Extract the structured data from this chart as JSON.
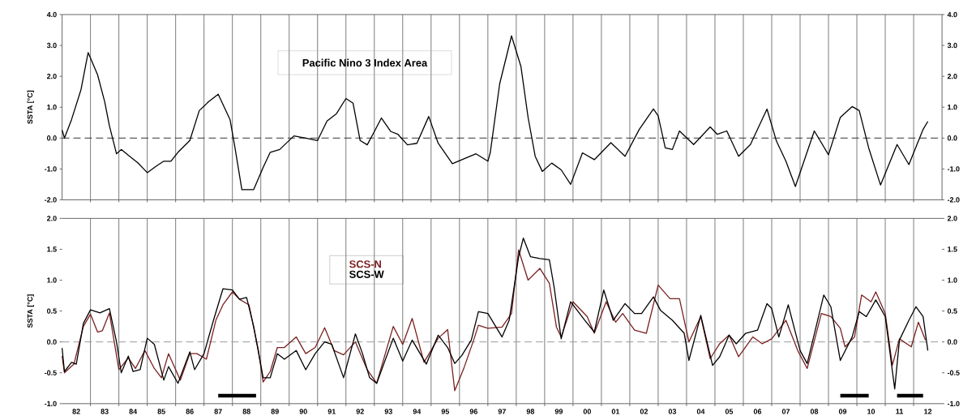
{
  "chart_data": [
    {
      "type": "line",
      "title": "Pacific Nino 3 Index Area",
      "ylabel": "SSTA [°C]",
      "xlim": [
        "1982",
        "2013"
      ],
      "xticks": [
        {
          "value": "1983",
          "label": null
        },
        {
          "value": "1984",
          "label": null
        },
        {
          "value": "1985",
          "label": null
        },
        {
          "value": "1986",
          "label": null
        },
        {
          "value": "1987",
          "label": null
        },
        {
          "value": "1988",
          "label": null
        },
        {
          "value": "1989",
          "label": null
        },
        {
          "value": "1990",
          "label": null
        },
        {
          "value": "1991",
          "label": null
        },
        {
          "value": "1992",
          "label": null
        },
        {
          "value": "1993",
          "label": null
        },
        {
          "value": "1994",
          "label": null
        },
        {
          "value": "1995",
          "label": null
        },
        {
          "value": "1996",
          "label": null
        },
        {
          "value": "1997",
          "label": null
        },
        {
          "value": "1998",
          "label": null
        },
        {
          "value": "1999",
          "label": null
        },
        {
          "value": "2000",
          "label": null
        },
        {
          "value": "2001",
          "label": null
        },
        {
          "value": "2002",
          "label": null
        },
        {
          "value": "2003",
          "label": null
        },
        {
          "value": "2004",
          "label": null
        },
        {
          "value": "2005",
          "label": null
        },
        {
          "value": "2006",
          "label": null
        },
        {
          "value": "2007",
          "label": null
        },
        {
          "value": "2008",
          "label": null
        },
        {
          "value": "2009",
          "label": null
        },
        {
          "value": "2010",
          "label": null
        },
        {
          "value": "2011",
          "label": null
        },
        {
          "value": "2012",
          "label": null
        }
      ],
      "ylim": [
        -2,
        4
      ],
      "yticks": [
        {
          "value": -2,
          "label": "-2.0"
        },
        {
          "value": -1,
          "label": "-1.0"
        },
        {
          "value": 0,
          "label": "0.0"
        },
        {
          "value": 1,
          "label": "1.0"
        },
        {
          "value": 2,
          "label": "2.0"
        },
        {
          "value": 3,
          "label": "3.0"
        },
        {
          "value": 4,
          "label": "4.0"
        }
      ],
      "y2lim": [
        -2,
        4
      ],
      "y2ticks": [
        {
          "value": -2,
          "label": "-2.0"
        },
        {
          "value": -1,
          "label": "-1.0"
        },
        {
          "value": 0,
          "label": "0.0"
        },
        {
          "value": 1,
          "label": "1.0"
        },
        {
          "value": 2,
          "label": "2.0"
        },
        {
          "value": 3,
          "label": "3.0"
        },
        {
          "value": 4,
          "label": "4.0"
        }
      ],
      "tick_labels": "y",
      "grid": "x",
      "ref_lines": [
        {
          "axis": "y",
          "value": 0,
          "line_style": "dashed",
          "color": "#333333"
        }
      ],
      "series": [
        {
          "color": "#000000",
          "x": [
            "1982-01",
            "1982-02",
            "1982-05",
            "1982-09",
            "1982-12",
            "1983-04",
            "1983-07",
            "1983-09",
            "1983-12",
            "1984-02",
            "1984-05",
            "1984-09",
            "1985-01",
            "1985-05",
            "1985-08",
            "1985-11",
            "1986-02",
            "1986-07",
            "1986-11",
            "1987-03",
            "1987-07",
            "1987-12",
            "1988-02",
            "1988-05",
            "1988-10",
            "1989-02",
            "1989-05",
            "1989-09",
            "1990-03",
            "1990-08",
            "1991-01",
            "1991-05",
            "1991-09",
            "1992-01",
            "1992-04",
            "1992-07",
            "1992-10",
            "1993-01",
            "1993-04",
            "1993-08",
            "1993-11",
            "1994-03",
            "1994-07",
            "1994-12",
            "1995-04",
            "1995-10",
            "1996-08",
            "1997-01",
            "1997-02",
            "1997-06",
            "1997-11",
            "1998-03",
            "1998-06",
            "1998-09",
            "1998-12",
            "1999-04",
            "1999-08",
            "1999-12",
            "2000-05",
            "2000-10",
            "2001-05",
            "2001-11",
            "2002-05",
            "2002-11",
            "2003-01",
            "2003-04",
            "2003-07",
            "2003-10",
            "2004-04",
            "2004-11",
            "2005-02",
            "2005-06",
            "2005-11",
            "2006-04",
            "2006-11",
            "2007-03",
            "2007-07",
            "2007-11",
            "2008-07",
            "2009-01",
            "2009-06",
            "2009-11",
            "2010-02",
            "2010-06",
            "2010-11",
            "2011-06",
            "2011-11",
            "2012-05",
            "2012-07"
          ],
          "values": [
            0.26,
            0.0,
            0.6,
            1.57,
            2.77,
            2.05,
            1.18,
            0.4,
            -0.51,
            -0.37,
            -0.56,
            -0.8,
            -1.12,
            -0.9,
            -0.75,
            -0.75,
            -0.46,
            -0.08,
            0.89,
            1.18,
            1.42,
            0.6,
            -0.27,
            -1.67,
            -1.67,
            -0.95,
            -0.46,
            -0.37,
            0.07,
            0.0,
            -0.08,
            0.55,
            0.79,
            1.28,
            1.13,
            -0.08,
            -0.22,
            0.21,
            0.65,
            0.21,
            0.12,
            -0.22,
            -0.17,
            0.7,
            -0.17,
            -0.83,
            -0.51,
            -0.75,
            -0.48,
            1.76,
            3.31,
            2.31,
            0.67,
            -0.59,
            -1.08,
            -0.81,
            -1.03,
            -1.5,
            -0.48,
            -0.7,
            -0.15,
            -0.59,
            0.28,
            0.94,
            0.72,
            -0.32,
            -0.37,
            0.23,
            -0.21,
            0.36,
            0.12,
            0.23,
            -0.59,
            -0.21,
            0.94,
            -0.1,
            -0.75,
            -1.57,
            0.23,
            -0.54,
            0.67,
            1.02,
            0.89,
            -0.32,
            -1.52,
            -0.21,
            -0.86,
            0.28,
            0.54
          ]
        }
      ]
    },
    {
      "type": "line",
      "ylabel": "SSTA [°C]",
      "xlim": [
        "1982",
        "2013"
      ],
      "xticks": [
        {
          "value": "1982-07",
          "label": "82"
        },
        {
          "value": "1983-07",
          "label": "83"
        },
        {
          "value": "1984-07",
          "label": "84"
        },
        {
          "value": "1985-07",
          "label": "85"
        },
        {
          "value": "1986-07",
          "label": "86"
        },
        {
          "value": "1987-07",
          "label": "87"
        },
        {
          "value": "1988-07",
          "label": "88"
        },
        {
          "value": "1989-07",
          "label": "89"
        },
        {
          "value": "1990-07",
          "label": "90"
        },
        {
          "value": "1991-07",
          "label": "91"
        },
        {
          "value": "1992-07",
          "label": "92"
        },
        {
          "value": "1993-07",
          "label": "93"
        },
        {
          "value": "1994-07",
          "label": "94"
        },
        {
          "value": "1995-07",
          "label": "95"
        },
        {
          "value": "1996-07",
          "label": "96"
        },
        {
          "value": "1997-07",
          "label": "97"
        },
        {
          "value": "1998-07",
          "label": "98"
        },
        {
          "value": "1999-07",
          "label": "99"
        },
        {
          "value": "2000-07",
          "label": "00"
        },
        {
          "value": "2001-07",
          "label": "01"
        },
        {
          "value": "2002-07",
          "label": "02"
        },
        {
          "value": "2003-07",
          "label": "03"
        },
        {
          "value": "2004-07",
          "label": "04"
        },
        {
          "value": "2005-07",
          "label": "05"
        },
        {
          "value": "2006-07",
          "label": "06"
        },
        {
          "value": "2007-07",
          "label": "07"
        },
        {
          "value": "2008-07",
          "label": "08"
        },
        {
          "value": "2009-07",
          "label": "09"
        },
        {
          "value": "2010-07",
          "label": "10"
        },
        {
          "value": "2011-07",
          "label": "11"
        },
        {
          "value": "2012-07",
          "label": "12"
        }
      ],
      "ylim": [
        -1,
        2
      ],
      "yticks": [
        {
          "value": -1,
          "label": "-1.0"
        },
        {
          "value": -0.5,
          "label": "-0.5"
        },
        {
          "value": 0,
          "label": "0.0"
        },
        {
          "value": 0.5,
          "label": "0.5"
        },
        {
          "value": 1,
          "label": "1.0"
        },
        {
          "value": 1.5,
          "label": "1.5"
        },
        {
          "value": 2,
          "label": "2.0"
        }
      ],
      "y2lim": [
        -1,
        2
      ],
      "y2ticks": [
        {
          "value": -1,
          "label": "-1.0"
        },
        {
          "value": -0.5,
          "label": "-0.5"
        },
        {
          "value": 0,
          "label": "0.0"
        },
        {
          "value": 0.5,
          "label": "0.5"
        },
        {
          "value": 1,
          "label": "1.0"
        },
        {
          "value": 1.5,
          "label": "1.5"
        },
        {
          "value": 2,
          "label": "2.0"
        }
      ],
      "grid": "x",
      "legend": "top",
      "ref_lines": [
        {
          "axis": "y",
          "value": 0,
          "line_style": "dashed",
          "color": "#999999"
        }
      ],
      "series": [
        {
          "name": "SCS-N",
          "color": "#7a1f1f",
          "x": [
            "1982-01",
            "1982-02",
            "1982-06",
            "1982-10",
            "1983-01",
            "1983-04",
            "1983-06",
            "1983-09",
            "1984-01",
            "1984-05",
            "1984-08",
            "1984-12",
            "1985-04",
            "1985-07",
            "1985-10",
            "1986-03",
            "1986-07",
            "1986-10",
            "1987-02",
            "1987-06",
            "1987-09",
            "1988-01",
            "1988-04",
            "1988-08",
            "1988-12",
            "1989-02",
            "1989-05",
            "1989-08",
            "1989-11",
            "1990-04",
            "1990-08",
            "1990-12",
            "1991-04",
            "1991-08",
            "1991-12",
            "1992-05",
            "1992-10",
            "1993-02",
            "1993-09",
            "1994-01",
            "1994-05",
            "1994-10",
            "1995-04",
            "1995-08",
            "1995-11",
            "1996-03",
            "1996-07",
            "1996-09",
            "1997-01",
            "1997-07",
            "1997-11",
            "1998-02",
            "1998-06",
            "1998-11",
            "1999-03",
            "1999-06",
            "1999-08",
            "2000-01",
            "2000-07",
            "2000-10",
            "2001-03",
            "2001-07",
            "2001-10",
            "2002-03",
            "2002-08",
            "2003-01",
            "2003-06",
            "2003-10",
            "2004-02",
            "2004-07",
            "2004-11",
            "2005-03",
            "2005-07",
            "2005-11",
            "2006-05",
            "2006-09",
            "2007-01",
            "2007-07",
            "2007-12",
            "2008-04",
            "2008-10",
            "2009-02",
            "2009-06",
            "2009-08",
            "2009-12",
            "2010-03",
            "2010-07",
            "2010-09",
            "2011-01",
            "2011-04",
            "2011-07",
            "2011-12",
            "2012-03",
            "2012-06"
          ],
          "values": [
            -0.23,
            -0.5,
            -0.36,
            0.25,
            0.45,
            0.16,
            0.18,
            0.47,
            -0.45,
            -0.26,
            -0.43,
            -0.14,
            -0.43,
            -0.58,
            -0.19,
            -0.62,
            -0.19,
            -0.19,
            -0.28,
            0.35,
            0.6,
            0.81,
            0.69,
            0.6,
            -0.14,
            -0.65,
            -0.48,
            -0.09,
            -0.09,
            0.08,
            -0.19,
            -0.09,
            0.23,
            -0.14,
            -0.21,
            0.0,
            -0.45,
            -0.67,
            0.25,
            -0.04,
            0.38,
            -0.33,
            0.06,
            0.2,
            -0.79,
            -0.41,
            0.03,
            0.27,
            0.22,
            0.24,
            0.46,
            1.49,
            1.0,
            1.19,
            0.95,
            0.24,
            0.08,
            0.65,
            0.41,
            0.14,
            0.65,
            0.32,
            0.46,
            0.19,
            0.14,
            0.92,
            0.7,
            0.7,
            0.0,
            0.41,
            -0.27,
            -0.03,
            0.11,
            -0.24,
            0.08,
            -0.03,
            0.05,
            0.35,
            -0.14,
            -0.43,
            0.46,
            0.41,
            0.22,
            -0.08,
            0.08,
            0.76,
            0.65,
            0.81,
            0.46,
            -0.38,
            0.05,
            -0.08,
            0.32,
            0.03
          ]
        },
        {
          "name": "SCS-W",
          "color": "#000000",
          "x": [
            "1982-01",
            "1982-02",
            "1982-05",
            "1982-07",
            "1982-10",
            "1983-01",
            "1983-05",
            "1983-09",
            "1983-12",
            "1984-02",
            "1984-05",
            "1984-07",
            "1984-10",
            "1985-01",
            "1985-04",
            "1985-08",
            "1985-10",
            "1986-02",
            "1986-07",
            "1986-09",
            "1987-01",
            "1987-05",
            "1987-09",
            "1988-01",
            "1988-04",
            "1988-07",
            "1988-10",
            "1989-02",
            "1989-05",
            "1989-08",
            "1989-11",
            "1990-04",
            "1990-08",
            "1990-12",
            "1991-04",
            "1991-07",
            "1991-12",
            "1992-05",
            "1992-08",
            "1992-11",
            "1993-02",
            "1993-09",
            "1994-01",
            "1994-05",
            "1994-11",
            "1995-04",
            "1995-08",
            "1995-11",
            "1996-02",
            "1996-06",
            "1996-09",
            "1997-01",
            "1997-07",
            "1997-10",
            "1998-02",
            "1998-04",
            "1998-07",
            "1998-11",
            "1999-03",
            "1999-05",
            "1999-08",
            "1999-12",
            "2000-06",
            "2000-10",
            "2001-02",
            "2001-06",
            "2001-11",
            "2002-03",
            "2002-06",
            "2002-11",
            "2003-02",
            "2003-07",
            "2003-12",
            "2004-02",
            "2004-07",
            "2004-12",
            "2005-03",
            "2005-07",
            "2005-10",
            "2006-02",
            "2006-07",
            "2006-11",
            "2007-01",
            "2007-04",
            "2007-08",
            "2008-01",
            "2008-04",
            "2008-11",
            "2009-02",
            "2009-06",
            "2009-11",
            "2010-02",
            "2010-05",
            "2010-09",
            "2011-01",
            "2011-05",
            "2011-07",
            "2011-11",
            "2012-02",
            "2012-05",
            "2012-07"
          ],
          "values": [
            -0.1,
            -0.48,
            -0.33,
            -0.36,
            0.3,
            0.52,
            0.47,
            0.54,
            0.0,
            -0.5,
            -0.23,
            -0.48,
            -0.45,
            0.06,
            -0.04,
            -0.62,
            -0.4,
            -0.67,
            -0.16,
            -0.45,
            -0.19,
            0.35,
            0.86,
            0.84,
            0.69,
            0.72,
            0.25,
            -0.58,
            -0.58,
            -0.19,
            -0.28,
            -0.14,
            -0.45,
            -0.19,
            0.0,
            -0.04,
            -0.58,
            0.13,
            -0.19,
            -0.58,
            -0.67,
            0.06,
            -0.31,
            0.03,
            -0.36,
            0.11,
            -0.09,
            -0.35,
            -0.22,
            0.03,
            0.49,
            0.46,
            0.08,
            0.35,
            1.38,
            1.68,
            1.38,
            1.35,
            1.33,
            0.89,
            0.05,
            0.65,
            0.35,
            0.16,
            0.84,
            0.35,
            0.62,
            0.46,
            0.46,
            0.73,
            0.51,
            0.35,
            0.14,
            -0.3,
            0.43,
            -0.38,
            -0.24,
            0.11,
            -0.03,
            0.14,
            0.19,
            0.62,
            0.54,
            0.08,
            0.6,
            -0.14,
            -0.35,
            0.76,
            0.57,
            -0.3,
            0.08,
            0.49,
            0.41,
            0.68,
            0.41,
            -0.76,
            0.03,
            0.35,
            0.57,
            0.41,
            -0.14
          ]
        },
        {
          "color": "#000000",
          "x": [
            "1987-07",
            "1988-11",
            "1999-01",
            "2009-06",
            "2010-06",
            "2011-01",
            "2011-06",
            "2012-05"
          ],
          "values": [
            -0.87,
            -0.87,
            null,
            -0.87,
            -0.87,
            null,
            -0.87,
            -0.87
          ]
        }
      ]
    }
  ]
}
